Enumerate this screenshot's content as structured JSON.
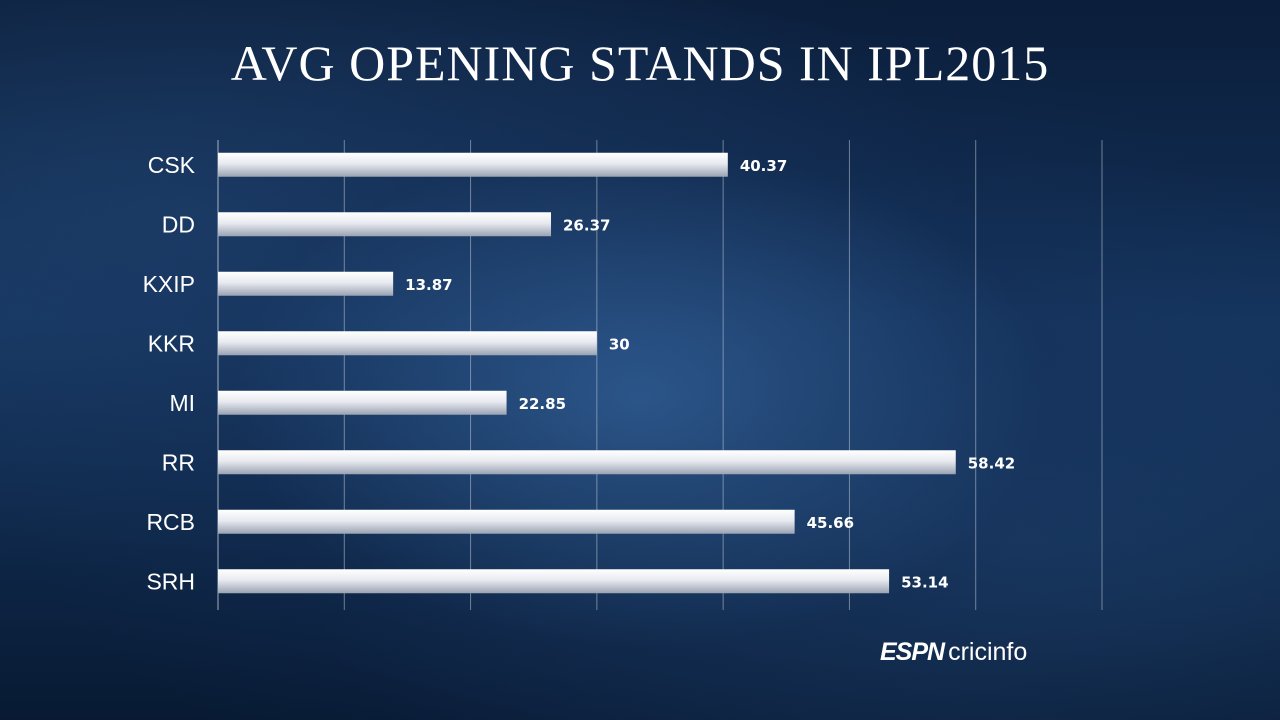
{
  "chart_data": {
    "type": "bar",
    "orientation": "horizontal",
    "title": "AVG OPENING STANDS IN IPL2015",
    "categories": [
      "CSK",
      "DD",
      "KXIP",
      "KKR",
      "MI",
      "RR",
      "RCB",
      "SRH"
    ],
    "values": [
      40.37,
      26.37,
      13.87,
      30,
      22.85,
      58.42,
      45.66,
      53.14
    ],
    "value_labels": [
      "40.37",
      "26.37",
      "13.87",
      "30",
      "22.85",
      "58.42",
      "45.66",
      "53.14"
    ],
    "xlim": [
      0,
      70
    ],
    "grid": true,
    "bar_color": "#e6e8ee"
  },
  "branding": {
    "espn": "ESPN",
    "cricinfo": "cricinfo"
  }
}
